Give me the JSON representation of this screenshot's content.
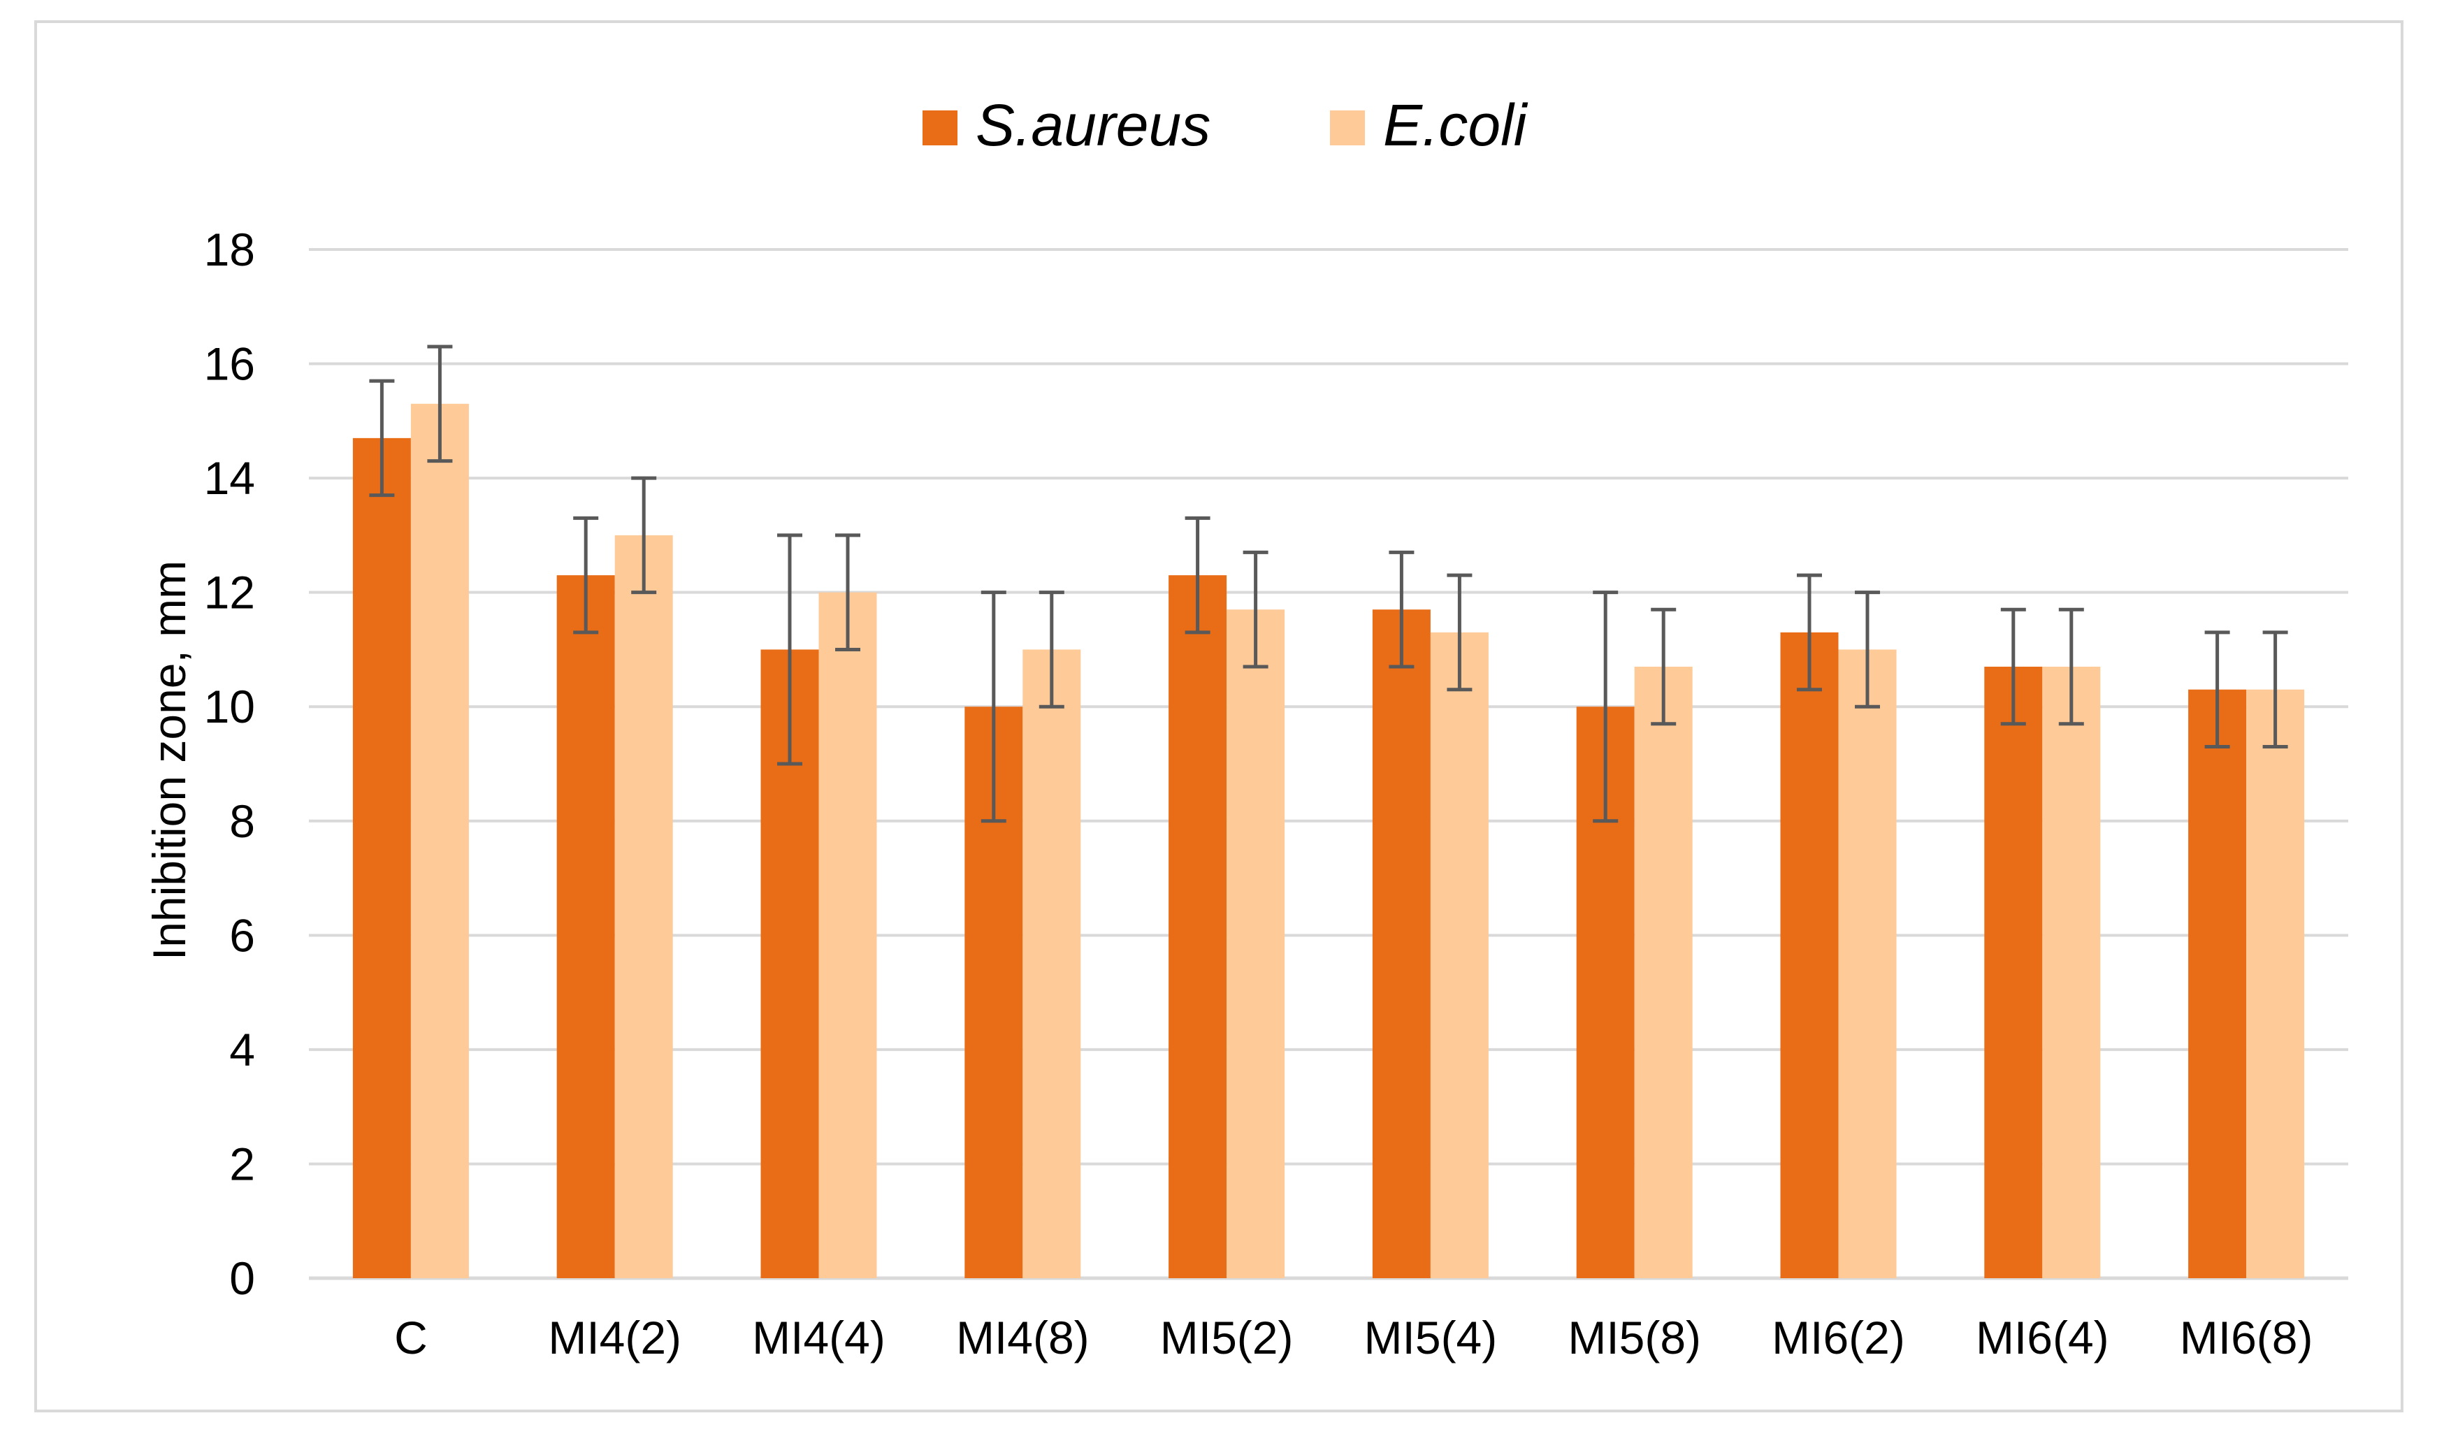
{
  "chart_data": {
    "type": "bar",
    "title": "",
    "xlabel": "",
    "ylabel": "Inhibition zone, mm",
    "ylim": [
      0,
      18
    ],
    "ytick_step": 2,
    "yticks": [
      "0",
      "2",
      "4",
      "6",
      "8",
      "10",
      "12",
      "14",
      "16",
      "18"
    ],
    "grid": true,
    "legend_position": "top-center",
    "categories": [
      "C",
      "MI4(2)",
      "MI4(4)",
      "MI4(8)",
      "MI5(2)",
      "MI5(4)",
      "MI5(8)",
      "MI6(2)",
      "MI6(4)",
      "MI6(8)"
    ],
    "series": [
      {
        "name": "S.aureus",
        "color": "#e96c17",
        "values": [
          14.7,
          12.3,
          11.0,
          10.0,
          12.3,
          11.7,
          10.0,
          11.3,
          10.7,
          10.3
        ],
        "errors": [
          1.0,
          1.0,
          2.0,
          2.0,
          1.0,
          1.0,
          2.0,
          1.0,
          1.0,
          1.0
        ]
      },
      {
        "name": "E.coli",
        "color": "#fdca98",
        "values": [
          15.3,
          13.0,
          12.0,
          11.0,
          11.7,
          11.3,
          10.7,
          11.0,
          10.7,
          10.3
        ],
        "errors": [
          1.0,
          1.0,
          1.0,
          1.0,
          1.0,
          1.0,
          1.0,
          1.0,
          1.0,
          1.0
        ]
      }
    ],
    "error_bar_color": "#595959",
    "grid_color": "#d9d9d9"
  }
}
